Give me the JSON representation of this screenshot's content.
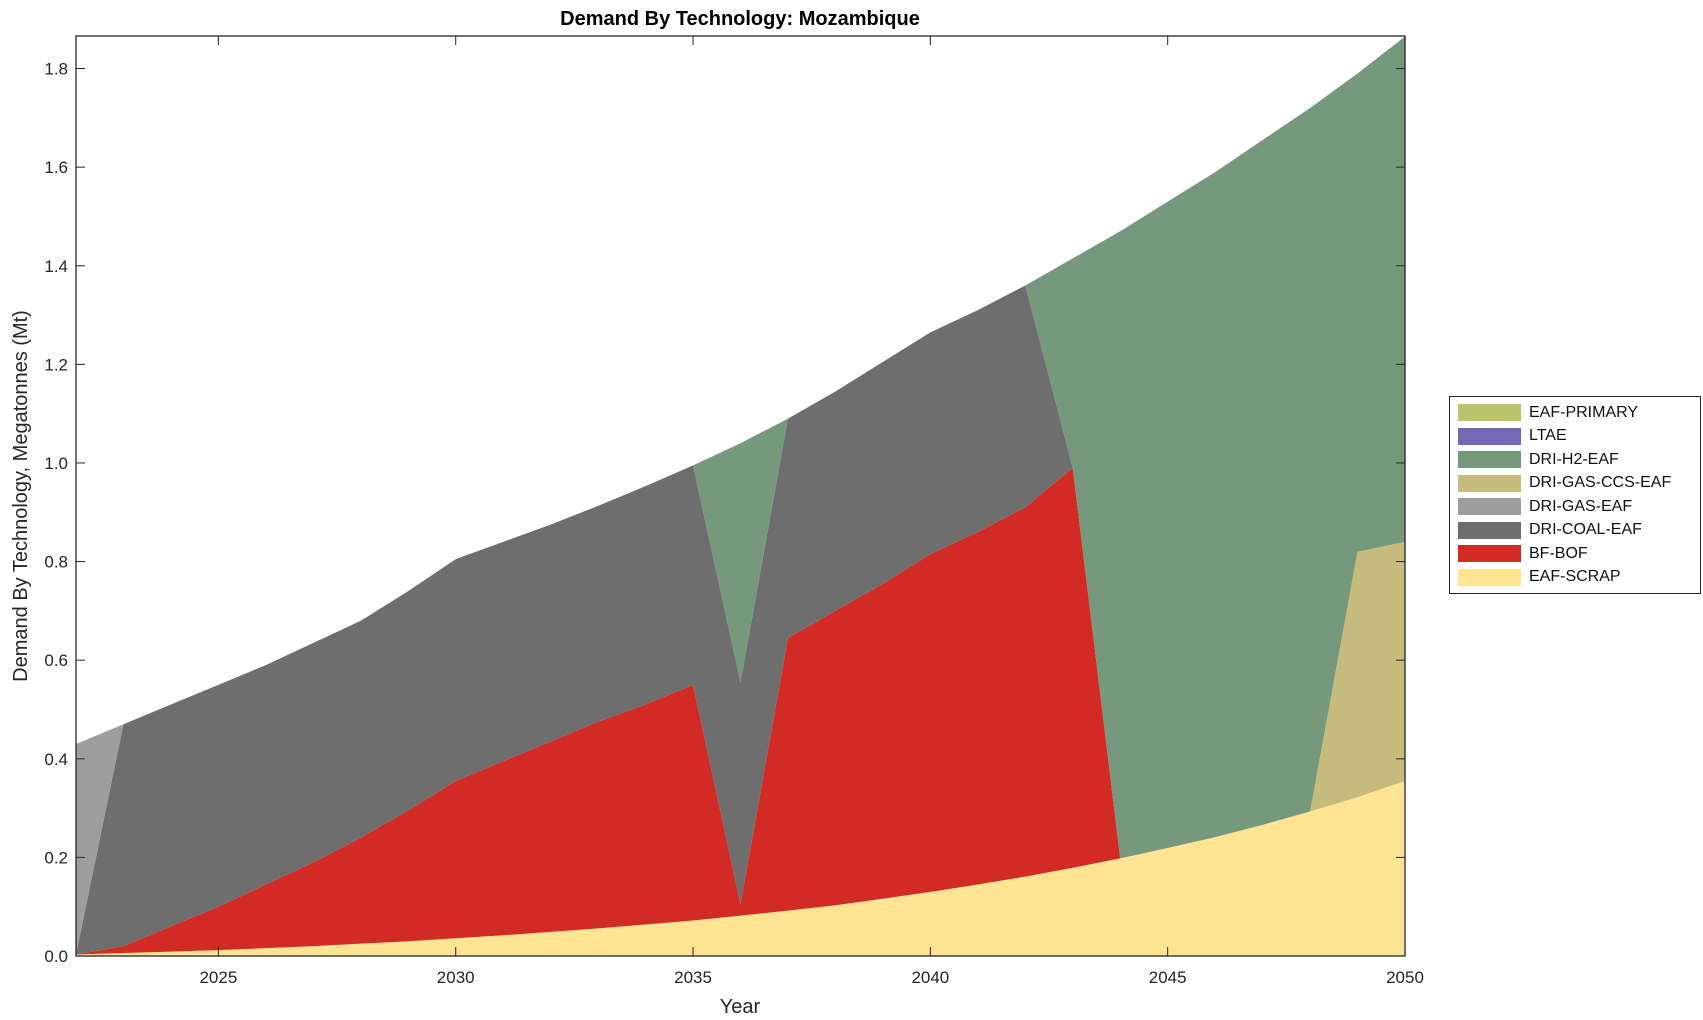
{
  "chart_data": {
    "type": "area",
    "title": "Demand By Technology: Mozambique",
    "xlabel": "Year",
    "ylabel": "Demand By Technology, Megatonnes (Mt)",
    "xlim": [
      2022,
      2050
    ],
    "ylim": [
      0,
      1.866
    ],
    "xticks": [
      "2025",
      "2030",
      "2035",
      "2040",
      "2045",
      "2050"
    ],
    "yticks": [
      "0.0",
      "0.2",
      "0.4",
      "0.6",
      "0.8",
      "1.0",
      "1.2",
      "1.4",
      "1.6",
      "1.8"
    ],
    "legend_position": "right",
    "stacked": true,
    "x": [
      2022,
      2023,
      2024,
      2025,
      2026,
      2027,
      2028,
      2029,
      2030,
      2031,
      2032,
      2033,
      2034,
      2035,
      2036,
      2037,
      2038,
      2039,
      2040,
      2041,
      2042,
      2043,
      2044,
      2045,
      2046,
      2047,
      2048,
      2049,
      2050
    ],
    "series": [
      {
        "name": "EAF-SCRAP",
        "color": "#FFE494",
        "values": [
          0.003,
          0.006,
          0.009,
          0.012,
          0.016,
          0.02,
          0.025,
          0.03,
          0.036,
          0.042,
          0.049,
          0.056,
          0.064,
          0.072,
          0.082,
          0.092,
          0.103,
          0.116,
          0.13,
          0.145,
          0.161,
          0.179,
          0.198,
          0.219,
          0.241,
          0.266,
          0.293,
          0.322,
          0.355
        ]
      },
      {
        "name": "BF-BOF",
        "color": "#D22B25",
        "values": [
          0,
          0.014,
          0.051,
          0.088,
          0.129,
          0.17,
          0.215,
          0.265,
          0.319,
          0.353,
          0.386,
          0.419,
          0.446,
          0.478,
          0.023,
          0.553,
          0.597,
          0.639,
          0.685,
          0.715,
          0.749,
          0.811,
          0,
          0,
          0,
          0,
          0,
          0,
          0
        ]
      },
      {
        "name": "DRI-COAL-EAF",
        "color": "#6E6E6E",
        "values": [
          0,
          0.45,
          0.45,
          0.45,
          0.445,
          0.445,
          0.44,
          0.445,
          0.45,
          0.445,
          0.44,
          0.438,
          0.443,
          0.445,
          0.45,
          0.445,
          0.445,
          0.45,
          0.45,
          0.45,
          0.45,
          0,
          0,
          0,
          0,
          0,
          0,
          0,
          0
        ]
      },
      {
        "name": "DRI-GAS-EAF",
        "color": "#9E9E9E",
        "values": [
          0.427,
          0,
          0,
          0,
          0,
          0,
          0,
          0,
          0,
          0,
          0,
          0,
          0,
          0,
          0,
          0,
          0,
          0,
          0,
          0,
          0,
          0,
          0,
          0,
          0,
          0,
          0,
          0,
          0
        ]
      },
      {
        "name": "DRI-GAS-CCS-EAF",
        "color": "#C6BC7E",
        "values": [
          0,
          0,
          0,
          0,
          0,
          0,
          0,
          0,
          0,
          0,
          0,
          0,
          0,
          0,
          0,
          0,
          0,
          0,
          0,
          0,
          0,
          0,
          0,
          0,
          0,
          0,
          0,
          0.498,
          0.485
        ]
      },
      {
        "name": "DRI-H2-EAF",
        "color": "#76987D",
        "values": [
          0,
          0,
          0,
          0,
          0,
          0,
          0,
          0,
          0,
          0,
          0,
          0,
          0,
          0,
          0.485,
          0,
          0,
          0,
          0,
          0,
          0,
          0.425,
          1.272,
          1.311,
          1.349,
          1.389,
          1.427,
          0.97,
          1.025
        ]
      },
      {
        "name": "LTAE",
        "color": "#7569B5",
        "values": [
          0,
          0,
          0,
          0,
          0,
          0,
          0,
          0,
          0,
          0,
          0,
          0,
          0,
          0,
          0,
          0,
          0,
          0,
          0,
          0,
          0,
          0,
          0,
          0,
          0,
          0,
          0,
          0,
          0
        ]
      },
      {
        "name": "EAF-PRIMARY",
        "color": "#BBC46A",
        "values": [
          0,
          0,
          0,
          0,
          0,
          0,
          0,
          0,
          0,
          0,
          0,
          0,
          0,
          0,
          0,
          0,
          0,
          0,
          0,
          0,
          0,
          0,
          0,
          0,
          0,
          0,
          0,
          0,
          0
        ]
      }
    ],
    "legend_order": [
      "EAF-PRIMARY",
      "LTAE",
      "DRI-H2-EAF",
      "DRI-GAS-CCS-EAF",
      "DRI-GAS-EAF",
      "DRI-COAL-EAF",
      "BF-BOF",
      "EAF-SCRAP"
    ]
  }
}
